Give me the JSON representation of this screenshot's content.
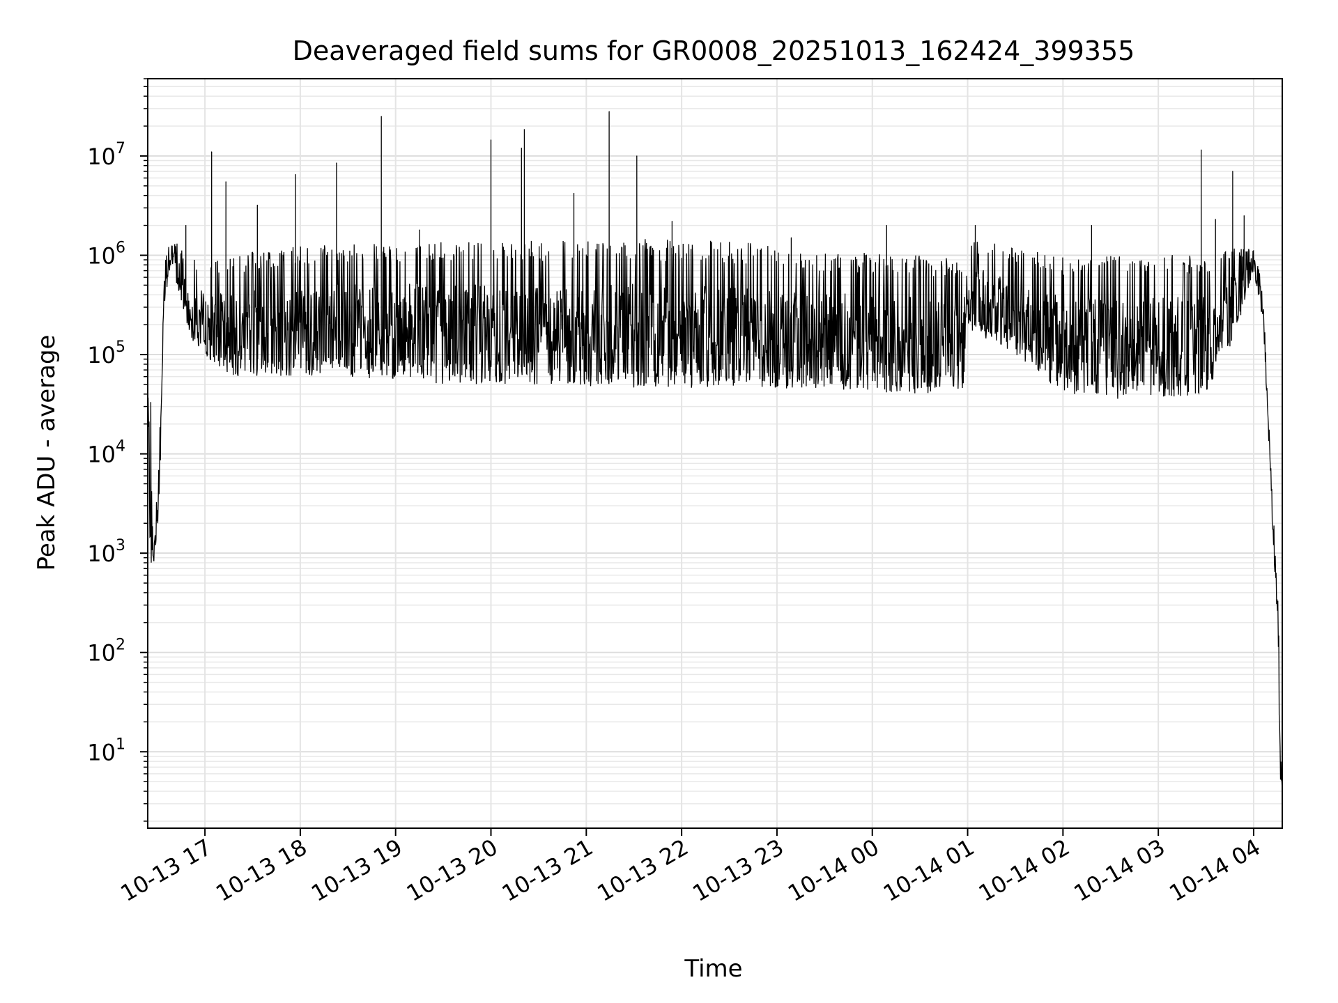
{
  "chart_data": {
    "type": "line",
    "title": "Deaveraged field sums for GR0008_20251013_162424_399355",
    "xlabel": "Time",
    "ylabel": "Peak ADU - average",
    "yscale": "log",
    "ylim": [
      1.7,
      60000000
    ],
    "xlim_hours": [
      16.4,
      28.3
    ],
    "grid": true,
    "x_ticks": [
      {
        "label": "10-13 17",
        "hour": 17
      },
      {
        "label": "10-13 18",
        "hour": 18
      },
      {
        "label": "10-13 19",
        "hour": 19
      },
      {
        "label": "10-13 20",
        "hour": 20
      },
      {
        "label": "10-13 21",
        "hour": 21
      },
      {
        "label": "10-13 22",
        "hour": 22
      },
      {
        "label": "10-13 23",
        "hour": 23
      },
      {
        "label": "10-14 00",
        "hour": 24
      },
      {
        "label": "10-14 01",
        "hour": 25
      },
      {
        "label": "10-14 02",
        "hour": 26
      },
      {
        "label": "10-14 03",
        "hour": 27
      },
      {
        "label": "10-14 04",
        "hour": 28
      }
    ],
    "y_ticks": [
      {
        "base": "10",
        "exp": "1",
        "value": 10
      },
      {
        "base": "10",
        "exp": "2",
        "value": 100
      },
      {
        "base": "10",
        "exp": "3",
        "value": 1000
      },
      {
        "base": "10",
        "exp": "4",
        "value": 10000
      },
      {
        "base": "10",
        "exp": "5",
        "value": 100000
      },
      {
        "base": "10",
        "exp": "6",
        "value": 1000000
      },
      {
        "base": "10",
        "exp": "7",
        "value": 10000000
      }
    ],
    "series": [
      {
        "name": "field sums",
        "color": "#000000",
        "envelope": [
          {
            "t": 16.4,
            "lo": 30000,
            "hi": 55000
          },
          {
            "t": 16.43,
            "lo": 500,
            "hi": 40000
          },
          {
            "t": 16.47,
            "lo": 900,
            "hi": 1500
          },
          {
            "t": 16.52,
            "lo": 2500,
            "hi": 10000
          },
          {
            "t": 16.57,
            "lo": 300000,
            "hi": 900000
          },
          {
            "t": 16.65,
            "lo": 900000,
            "hi": 1500000
          },
          {
            "t": 16.75,
            "lo": 300000,
            "hi": 1200000
          },
          {
            "t": 16.85,
            "lo": 150000,
            "hi": 1000000
          },
          {
            "t": 17.0,
            "lo": 90000,
            "hi": 800000
          },
          {
            "t": 17.3,
            "lo": 60000,
            "hi": 1000000
          },
          {
            "t": 17.8,
            "lo": 60000,
            "hi": 1200000
          },
          {
            "t": 18.5,
            "lo": 60000,
            "hi": 1300000
          },
          {
            "t": 19.5,
            "lo": 50000,
            "hi": 1400000
          },
          {
            "t": 20.5,
            "lo": 50000,
            "hi": 1400000
          },
          {
            "t": 21.5,
            "lo": 45000,
            "hi": 1500000
          },
          {
            "t": 22.5,
            "lo": 45000,
            "hi": 1400000
          },
          {
            "t": 23.5,
            "lo": 45000,
            "hi": 1100000
          },
          {
            "t": 24.5,
            "lo": 40000,
            "hi": 1000000
          },
          {
            "t": 24.95,
            "lo": 45000,
            "hi": 900000
          },
          {
            "t": 25.0,
            "lo": 180000,
            "hi": 1500000
          },
          {
            "t": 25.5,
            "lo": 100000,
            "hi": 1200000
          },
          {
            "t": 26.0,
            "lo": 40000,
            "hi": 1000000
          },
          {
            "t": 26.7,
            "lo": 35000,
            "hi": 1000000
          },
          {
            "t": 27.5,
            "lo": 40000,
            "hi": 1100000
          },
          {
            "t": 27.8,
            "lo": 150000,
            "hi": 1200000
          },
          {
            "t": 28.0,
            "lo": 700000,
            "hi": 1200000
          },
          {
            "t": 28.1,
            "lo": 200000,
            "hi": 500000
          },
          {
            "t": 28.15,
            "lo": 20000,
            "hi": 50000
          },
          {
            "t": 28.2,
            "lo": 1500,
            "hi": 2500
          },
          {
            "t": 28.25,
            "lo": 200,
            "hi": 1000
          },
          {
            "t": 28.28,
            "lo": 4,
            "hi": 20
          },
          {
            "t": 28.3,
            "lo": 3.8,
            "hi": 5
          }
        ],
        "spikes": [
          {
            "t": 16.8,
            "value": 2000000
          },
          {
            "t": 17.07,
            "value": 11000000
          },
          {
            "t": 17.22,
            "value": 5500000
          },
          {
            "t": 17.55,
            "value": 3200000
          },
          {
            "t": 17.95,
            "value": 6500000
          },
          {
            "t": 18.38,
            "value": 8500000
          },
          {
            "t": 18.85,
            "value": 25000000
          },
          {
            "t": 19.25,
            "value": 1800000
          },
          {
            "t": 20.0,
            "value": 14500000
          },
          {
            "t": 20.32,
            "value": 12000000
          },
          {
            "t": 20.35,
            "value": 18500000
          },
          {
            "t": 20.87,
            "value": 4200000
          },
          {
            "t": 21.24,
            "value": 28000000
          },
          {
            "t": 21.53,
            "value": 10000000
          },
          {
            "t": 21.9,
            "value": 2200000
          },
          {
            "t": 23.15,
            "value": 1500000
          },
          {
            "t": 24.15,
            "value": 2000000
          },
          {
            "t": 25.08,
            "value": 2000000
          },
          {
            "t": 26.3,
            "value": 2000000
          },
          {
            "t": 27.45,
            "value": 11500000
          },
          {
            "t": 27.6,
            "value": 2300000
          },
          {
            "t": 27.78,
            "value": 7000000
          },
          {
            "t": 27.9,
            "value": 2500000
          }
        ]
      }
    ]
  }
}
